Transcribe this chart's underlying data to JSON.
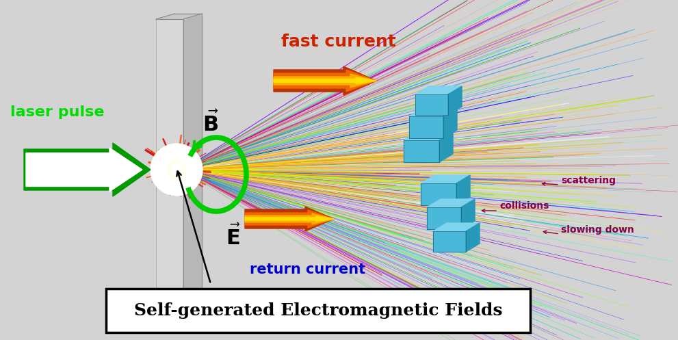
{
  "bg_color": "#d3d3d3",
  "fig_width": 9.91,
  "fig_height": 4.97,
  "title": "Self-generated Electromagnetic Fields",
  "label_laser": "laser pulse",
  "label_fast": "fast current",
  "label_return": "return current",
  "label_scattering": "scattering",
  "label_collisions": "collisions",
  "label_slowing": "slowing down",
  "label_B": "$\\vec{\\mathbf{B}}$",
  "label_E": "$\\vec{\\mathbf{E}}$",
  "color_laser_label": "#00dd00",
  "color_fast": "#cc2200",
  "color_return": "#0000cc",
  "color_annot": "#880044",
  "beam_colors": [
    "#cc00cc",
    "#aa00ff",
    "#0000ff",
    "#00aaff",
    "#00cccc",
    "#00cc00",
    "#aacc00",
    "#ffcc00",
    "#ff6600",
    "#ff0000",
    "#ff00aa",
    "#8800ff",
    "#0088ff",
    "#00ff88",
    "#88ff00",
    "#ff44ff",
    "#44aaff",
    "#ffaa44",
    "#aa44ff",
    "#44ffaa"
  ]
}
